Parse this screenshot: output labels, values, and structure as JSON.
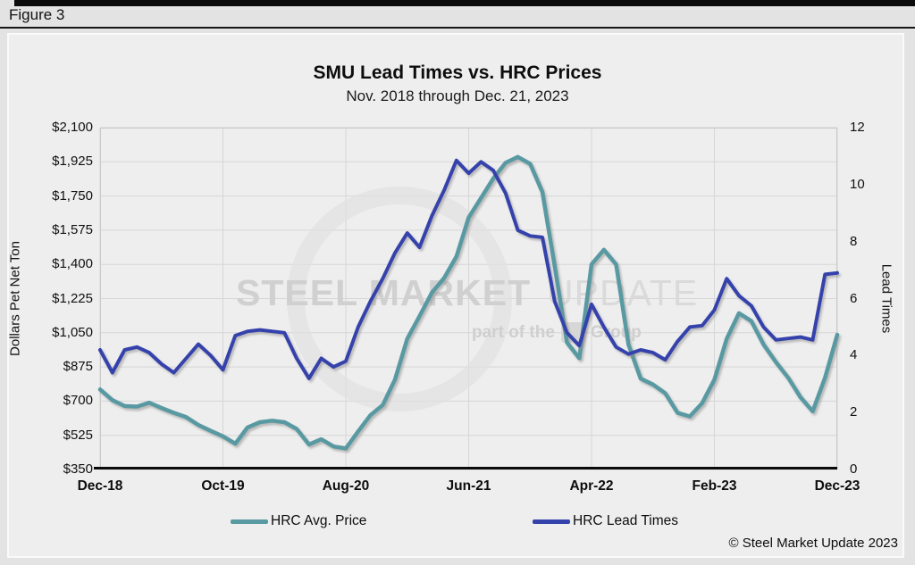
{
  "figure_label": "Figure 3",
  "chart": {
    "title": "SMU Lead Times vs. HRC Prices",
    "subtitle": "Nov. 2018 through Dec. 21, 2023",
    "left_axis": {
      "title": "Dollars Pet Net Ton",
      "ticks": [
        "$2,100",
        "$1,925",
        "$1,750",
        "$1,575",
        "$1,400",
        "$1,225",
        "$1,050",
        "$875",
        "$700",
        "$525",
        "$350"
      ]
    },
    "right_axis": {
      "title": "Lead Times",
      "ticks": [
        "12",
        "10",
        "8",
        "6",
        "4",
        "2",
        "0"
      ]
    },
    "watermark": {
      "bold_part": "STEEL MARKET",
      "light_part": "UPDATE",
      "tagline_prefix": "part of the",
      "tagline_suffix": "Group"
    },
    "copyright": "© Steel Market Update 2023"
  },
  "colors": {
    "price_line": "#5899a2",
    "leadtime_line": "#3442ac",
    "gridline": "#d6d6d6",
    "plot_border": "#c9c9c9",
    "axis_line": "#0a0a0a"
  },
  "chart_data": {
    "type": "line",
    "title": "SMU Lead Times vs. HRC Prices",
    "subtitle": "Nov. 2018 through Dec. 21, 2023",
    "x": [
      "Dec-18",
      "Jan-19",
      "Feb-19",
      "Mar-19",
      "Apr-19",
      "May-19",
      "Jun-19",
      "Jul-19",
      "Aug-19",
      "Sep-19",
      "Oct-19",
      "Nov-19",
      "Dec-19",
      "Jan-20",
      "Feb-20",
      "Mar-20",
      "Apr-20",
      "May-20",
      "Jun-20",
      "Jul-20",
      "Aug-20",
      "Sep-20",
      "Oct-20",
      "Nov-20",
      "Dec-20",
      "Jan-21",
      "Feb-21",
      "Mar-21",
      "Apr-21",
      "May-21",
      "Jun-21",
      "Jul-21",
      "Aug-21",
      "Sep-21",
      "Oct-21",
      "Nov-21",
      "Dec-21",
      "Jan-22",
      "Feb-22",
      "Mar-22",
      "Apr-22",
      "May-22",
      "Jun-22",
      "Jul-22",
      "Aug-22",
      "Sep-22",
      "Oct-22",
      "Nov-22",
      "Dec-22",
      "Jan-23",
      "Feb-23",
      "Mar-23",
      "Apr-23",
      "May-23",
      "Jun-23",
      "Jul-23",
      "Aug-23",
      "Sep-23",
      "Oct-23",
      "Nov-23",
      "Dec-23"
    ],
    "x_tick_positions": [
      0,
      10,
      20,
      30,
      40,
      50,
      60
    ],
    "x_tick_labels": [
      "Dec-18",
      "Oct-19",
      "Aug-20",
      "Jun-21",
      "Apr-22",
      "Feb-23",
      "Dec-23"
    ],
    "xlabel": "",
    "left_ylabel": "Dollars Pet Net Ton",
    "right_ylabel": "Lead Times",
    "left_ylim": [
      350,
      2100
    ],
    "left_ytick_step": 175,
    "right_ylim": [
      0,
      12
    ],
    "right_ytick_step": 2,
    "grid": true,
    "legend_position": "bottom",
    "series": [
      {
        "name": "HRC Avg. Price",
        "axis": "left",
        "unit": "$ per net ton",
        "color": "#5899a2",
        "values": [
          760,
          705,
          675,
          672,
          692,
          665,
          640,
          618,
          578,
          548,
          520,
          482,
          565,
          592,
          600,
          592,
          558,
          478,
          505,
          468,
          458,
          545,
          628,
          680,
          810,
          1020,
          1135,
          1255,
          1330,
          1440,
          1640,
          1740,
          1840,
          1920,
          1950,
          1915,
          1770,
          1390,
          1000,
          920,
          1400,
          1475,
          1400,
          990,
          815,
          785,
          740,
          640,
          622,
          690,
          810,
          1020,
          1150,
          1110,
          990,
          900,
          820,
          720,
          648,
          820,
          1040
        ]
      },
      {
        "name": "HRC Lead Times",
        "axis": "right",
        "unit": "weeks",
        "color": "#3442ac",
        "values": [
          4.2,
          3.4,
          4.2,
          4.3,
          4.1,
          3.7,
          3.4,
          3.9,
          4.4,
          4.0,
          3.5,
          4.7,
          4.85,
          4.9,
          4.85,
          4.8,
          3.9,
          3.2,
          3.9,
          3.6,
          3.8,
          5.0,
          5.9,
          6.7,
          7.6,
          8.3,
          7.8,
          8.9,
          9.8,
          10.85,
          10.4,
          10.8,
          10.5,
          9.7,
          8.4,
          8.2,
          8.15,
          5.9,
          4.8,
          4.35,
          5.8,
          5.0,
          4.3,
          4.05,
          4.2,
          4.1,
          3.85,
          4.5,
          5.0,
          5.05,
          5.6,
          6.7,
          6.1,
          5.75,
          5.0,
          4.55,
          4.6,
          4.65,
          4.55,
          6.85,
          6.9
        ]
      }
    ]
  }
}
